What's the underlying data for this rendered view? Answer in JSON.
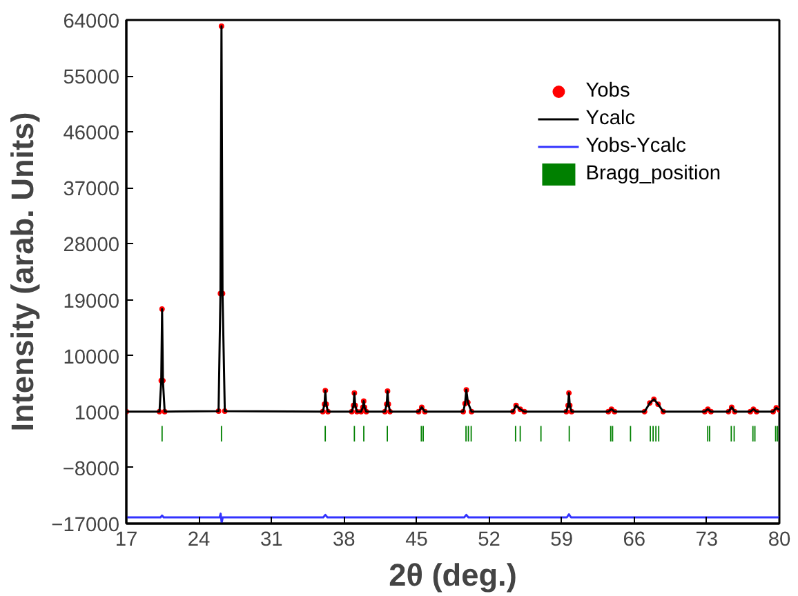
{
  "chart_data": {
    "type": "line",
    "xlabel": "2θ (deg.)",
    "ylabel": "Intensity (arab. Units)",
    "xlim": [
      17,
      80
    ],
    "xticks": [
      17,
      24,
      31,
      38,
      45,
      52,
      59,
      66,
      73,
      80
    ],
    "ylim": [
      -17000,
      64000
    ],
    "yticks": [
      -17000,
      -8000,
      1000,
      10000,
      19000,
      28000,
      37000,
      46000,
      55000,
      64000
    ],
    "grid": false,
    "legend": "top right",
    "x": [
      17,
      20.2,
      20.37,
      20.45,
      20.53,
      20.7,
      25.9,
      26.08,
      26.18,
      26.28,
      26.5,
      35.95,
      36.12,
      36.2,
      36.28,
      36.45,
      38.75,
      38.92,
      39.0,
      39.08,
      39.25,
      39.65,
      39.82,
      39.9,
      39.98,
      40.15,
      41.95,
      42.12,
      42.2,
      42.28,
      42.45,
      45.2,
      45.5,
      45.8,
      49.5,
      49.68,
      49.8,
      49.95,
      50.3,
      54.3,
      54.6,
      55.0,
      55.4,
      59.45,
      59.62,
      59.7,
      59.78,
      59.95,
      63.5,
      63.8,
      64.1,
      67.0,
      67.5,
      67.9,
      68.3,
      68.8,
      72.8,
      73.1,
      73.4,
      75.1,
      75.4,
      75.7,
      77.2,
      77.5,
      77.8,
      79.4,
      79.7,
      80
    ],
    "series": [
      {
        "name": "Yobs",
        "type": "scatter",
        "marker": "circle",
        "color": "#ff0000",
        "values": [
          1000,
          1000,
          6000,
          17500,
          6000,
          1000,
          1100,
          20000,
          63000,
          20000,
          1100,
          1000,
          2200,
          4400,
          2200,
          1000,
          1000,
          2000,
          4000,
          2000,
          1000,
          1000,
          1700,
          2700,
          1700,
          1000,
          1000,
          2200,
          4300,
          2200,
          1000,
          1000,
          1700,
          1000,
          1000,
          2300,
          4500,
          2500,
          1000,
          1000,
          2000,
          1400,
          1000,
          1000,
          2000,
          4000,
          2000,
          1000,
          1000,
          1400,
          1000,
          1000,
          2400,
          3000,
          2200,
          1000,
          1000,
          1400,
          1000,
          1000,
          1700,
          1000,
          1000,
          1400,
          1000,
          1000,
          1600,
          1300
        ]
      },
      {
        "name": "Ycalc",
        "line_style": "solid",
        "color": "#000000",
        "values": [
          1000,
          1000,
          6000,
          17500,
          6000,
          1000,
          1100,
          20000,
          63000,
          20000,
          1100,
          1000,
          2200,
          4400,
          2200,
          1000,
          1000,
          2000,
          4000,
          2000,
          1000,
          1000,
          1700,
          2700,
          1700,
          1000,
          1000,
          2200,
          4300,
          2200,
          1000,
          1000,
          1700,
          1000,
          1000,
          2300,
          4500,
          2500,
          1000,
          1000,
          2000,
          1400,
          1000,
          1000,
          2000,
          4000,
          2000,
          1000,
          1000,
          1400,
          1000,
          1000,
          2400,
          3000,
          2200,
          1000,
          1000,
          1400,
          1000,
          1000,
          1700,
          1000,
          1000,
          1400,
          1000,
          1000,
          1600,
          1300
        ]
      },
      {
        "name": "Yobs-Ycalc",
        "line_style": "solid",
        "color": "#3333ff",
        "x": [
          17,
          20.3,
          20.45,
          20.6,
          26.0,
          26.1,
          26.2,
          26.3,
          36.0,
          36.2,
          36.4,
          49.6,
          49.8,
          50.0,
          59.5,
          59.7,
          59.9,
          80
        ],
        "values": [
          -16000,
          -16000,
          -15700,
          -16000,
          -16000,
          -15400,
          -16900,
          -16000,
          -16000,
          -15600,
          -16000,
          -16000,
          -15600,
          -16000,
          -16000,
          -15500,
          -16000,
          -16000
        ]
      },
      {
        "name": "Bragg_position",
        "type": "bar",
        "color": "#008000",
        "base": [
          -3800,
          -3800,
          -3800,
          -3800,
          -3800,
          -3800,
          -3800,
          -3800,
          -3800,
          -3800,
          -3800,
          -3800,
          -3800,
          -3800,
          -3800,
          -3800,
          -3800,
          -3800,
          -3800,
          -3800,
          -3800,
          -3800,
          -3800,
          -3800,
          -3800,
          -3800,
          -3800,
          -3800,
          -3800,
          -3800
        ],
        "x": [
          20.45,
          26.18,
          36.19,
          39.0,
          39.91,
          42.18,
          45.46,
          45.64,
          49.77,
          50.0,
          50.27,
          54.55,
          55.0,
          57.0,
          59.73,
          63.73,
          63.91,
          65.64,
          67.55,
          67.82,
          68.09,
          68.36,
          73.09,
          73.27,
          75.36,
          75.64,
          77.45,
          77.64,
          79.64,
          79.82
        ],
        "values": [
          2500,
          2500,
          2500,
          2500,
          2500,
          2500,
          2500,
          2500,
          2500,
          2500,
          2500,
          2500,
          2500,
          2500,
          2500,
          2500,
          2500,
          2500,
          2500,
          2500,
          2500,
          2500,
          2500,
          2500,
          2500,
          2500,
          2500,
          2500,
          2500,
          2500
        ]
      }
    ]
  }
}
